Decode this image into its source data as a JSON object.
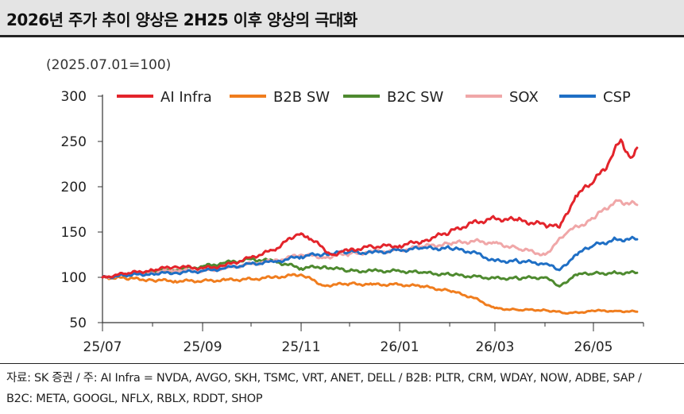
{
  "title": "2026년 주가 추이 양상은 2H25 이후 양상의 극대화",
  "unit_label": "(2025.07.01=100)",
  "source_line1": "자료: SK 증권 / 주: AI Infra = NVDA, AVGO, SKH, TSMC, VRT, ANET, DELL / B2B: PLTR, CRM, WDAY, NOW, ADBE, SAP /",
  "source_line2": "B2C: META, GOOGL, NFLX, RBLX, RDDT, SHOP",
  "chart_data": {
    "type": "line",
    "x_ticks": [
      "25/07",
      "25/09",
      "25/11",
      "26/01",
      "26/03",
      "26/05"
    ],
    "y_ticks": [
      300,
      250,
      200,
      150,
      100,
      50
    ],
    "ylim": [
      50,
      300
    ],
    "xlim": [
      "2025-07-01",
      "2026-06-01"
    ],
    "legend_position": "top",
    "grid": false,
    "series": [
      {
        "name": "AI Infra",
        "color": "#e3242b",
        "x": [
          "2025-07-01",
          "2025-07-15",
          "2025-08-01",
          "2025-08-15",
          "2025-09-01",
          "2025-09-15",
          "2025-10-01",
          "2025-10-15",
          "2025-10-29",
          "2025-11-05",
          "2025-11-20",
          "2025-12-01",
          "2025-12-15",
          "2026-01-01",
          "2026-01-15",
          "2026-02-01",
          "2026-02-15",
          "2026-03-01",
          "2026-03-15",
          "2026-04-01",
          "2026-04-10",
          "2026-04-20",
          "2026-05-01",
          "2026-05-10",
          "2026-05-18",
          "2026-05-24",
          "2026-05-28"
        ],
        "y": [
          100,
          104,
          108,
          112,
          110,
          113,
          122,
          130,
          147,
          145,
          125,
          130,
          134,
          135,
          140,
          150,
          160,
          165,
          163,
          158,
          155,
          190,
          205,
          225,
          252,
          232,
          243
        ]
      },
      {
        "name": "B2B SW",
        "color": "#f07d1e",
        "x": [
          "2025-07-01",
          "2025-07-15",
          "2025-08-01",
          "2025-08-15",
          "2025-09-01",
          "2025-09-15",
          "2025-10-01",
          "2025-10-15",
          "2025-11-01",
          "2025-11-15",
          "2025-12-01",
          "2025-12-15",
          "2026-01-01",
          "2026-01-15",
          "2026-02-01",
          "2026-02-15",
          "2026-03-01",
          "2026-03-15",
          "2026-04-01",
          "2026-04-15",
          "2026-05-01",
          "2026-05-15",
          "2026-05-28"
        ],
        "y": [
          100,
          99,
          97,
          96,
          96,
          97,
          98,
          100,
          103,
          91,
          93,
          92,
          92,
          90,
          85,
          78,
          66,
          64,
          64,
          60,
          63,
          63,
          62
        ]
      },
      {
        "name": "B2C SW",
        "color": "#4e8a2f",
        "x": [
          "2025-07-01",
          "2025-07-15",
          "2025-08-01",
          "2025-08-15",
          "2025-09-01",
          "2025-09-15",
          "2025-10-01",
          "2025-10-15",
          "2025-11-01",
          "2025-11-15",
          "2025-12-01",
          "2025-12-15",
          "2026-01-01",
          "2026-01-15",
          "2026-02-01",
          "2026-02-15",
          "2026-03-01",
          "2026-03-15",
          "2026-04-01",
          "2026-04-10",
          "2026-04-20",
          "2026-05-01",
          "2026-05-15",
          "2026-05-28"
        ],
        "y": [
          100,
          103,
          106,
          108,
          112,
          116,
          120,
          118,
          110,
          112,
          107,
          107,
          107,
          105,
          103,
          101,
          99,
          99,
          100,
          90,
          103,
          104,
          105,
          105
        ]
      },
      {
        "name": "SOX",
        "color": "#f0a7a8",
        "x": [
          "2025-07-01",
          "2025-07-15",
          "2025-08-01",
          "2025-08-15",
          "2025-09-01",
          "2025-09-15",
          "2025-10-01",
          "2025-10-15",
          "2025-11-01",
          "2025-11-15",
          "2025-12-01",
          "2025-12-15",
          "2026-01-01",
          "2026-01-15",
          "2026-02-01",
          "2026-02-15",
          "2026-03-01",
          "2026-03-15",
          "2026-04-01",
          "2026-04-15",
          "2026-05-01",
          "2026-05-15",
          "2026-05-28"
        ],
        "y": [
          100,
          103,
          105,
          108,
          107,
          110,
          115,
          118,
          125,
          122,
          126,
          128,
          130,
          134,
          137,
          140,
          138,
          132,
          125,
          150,
          165,
          185,
          180
        ]
      },
      {
        "name": "CSP",
        "color": "#1f6fc5",
        "x": [
          "2025-07-01",
          "2025-07-15",
          "2025-08-01",
          "2025-08-15",
          "2025-09-01",
          "2025-09-15",
          "2025-10-01",
          "2025-10-15",
          "2025-11-01",
          "2025-11-15",
          "2025-12-01",
          "2025-12-15",
          "2026-01-01",
          "2026-01-15",
          "2026-02-01",
          "2026-02-15",
          "2026-03-01",
          "2026-03-15",
          "2026-04-01",
          "2026-04-10",
          "2026-04-20",
          "2026-05-01",
          "2026-05-15",
          "2026-05-28"
        ],
        "y": [
          100,
          102,
          104,
          105,
          107,
          110,
          115,
          117,
          123,
          126,
          128,
          127,
          130,
          132,
          132,
          128,
          118,
          118,
          115,
          108,
          125,
          135,
          142,
          142
        ]
      }
    ]
  }
}
